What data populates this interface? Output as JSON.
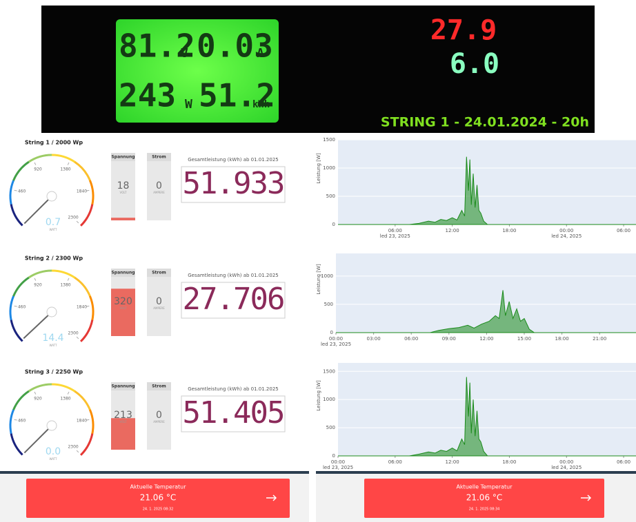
{
  "photo": {
    "lcd": {
      "voltage": "81.2",
      "voltage_unit": "V",
      "current": "0.03",
      "current_unit": "A",
      "power": "243",
      "power_unit": "W",
      "energy": "51.2",
      "energy_unit": "kWh"
    },
    "red_display": "27.9",
    "green_display": "6.0",
    "caption": "STRING 1 - 24.01.2024 - 20h"
  },
  "strings": [
    {
      "title": "String 1 / 2000 Wp",
      "gauge": {
        "value": 0.7,
        "value_label": "0.7",
        "unit": "WATT",
        "range": [
          0,
          2300
        ],
        "ticks": [
          460,
          920,
          1380,
          1840,
          2300
        ]
      },
      "voltage": {
        "label": "Spannung",
        "value": 18,
        "unit": "VOLT",
        "range": [
          0,
          400
        ]
      },
      "current": {
        "label": "Strom",
        "value": 0,
        "unit": "AMPERE",
        "range": [
          0,
          10
        ]
      },
      "total": {
        "label": "Gesamtleistung (kWh) ab 01.01.2025",
        "value": "51.933"
      }
    },
    {
      "title": "String 2 / 2300 Wp",
      "gauge": {
        "value": 14.4,
        "value_label": "14.4",
        "unit": "WATT",
        "range": [
          0,
          2300
        ],
        "ticks": [
          460,
          920,
          1380,
          1840,
          2300
        ]
      },
      "voltage": {
        "label": "Spannung",
        "value": 320,
        "unit": "VOLT",
        "range": [
          0,
          400
        ]
      },
      "current": {
        "label": "Strom",
        "value": 0,
        "unit": "AMPERE",
        "range": [
          0,
          10
        ]
      },
      "total": {
        "label": "Gesamtleistung (kWh) ab 01.01.2025",
        "value": "27.706"
      }
    },
    {
      "title": "String 3 / 2250 Wp",
      "gauge": {
        "value": 0,
        "value_label": "0.0",
        "unit": "WATT",
        "range": [
          0,
          2300
        ],
        "ticks": [
          460,
          920,
          1380,
          1840,
          2300
        ]
      },
      "voltage": {
        "label": "Spannung",
        "value": 213,
        "unit": "VOLT",
        "range": [
          0,
          400
        ]
      },
      "current": {
        "label": "Strom",
        "value": 0,
        "unit": "AMPERE",
        "range": [
          0,
          10
        ]
      },
      "total": {
        "label": "Gesamtleistung (kWh) ab 01.01.2025",
        "value": "51.405"
      }
    }
  ],
  "charts": [
    {
      "type": "area",
      "ylabel": "Leistung [W]",
      "color": "#1a8a1a",
      "x": [
        0.3,
        7.5,
        8.5,
        9.5,
        10.2,
        10.8,
        11.4,
        12.0,
        12.5,
        13.0,
        13.3,
        13.5,
        13.7,
        13.85,
        14.0,
        14.2,
        14.4,
        14.6,
        14.8,
        15.0,
        15.3,
        15.7,
        31.3
      ],
      "values": [
        0,
        0,
        20,
        60,
        40,
        90,
        70,
        120,
        80,
        250,
        150,
        1200,
        600,
        1150,
        350,
        900,
        300,
        700,
        250,
        200,
        60,
        0,
        0
      ],
      "xlim": [
        0,
        31.3
      ],
      "ylim": [
        0,
        1500
      ],
      "yticks": [
        0,
        500,
        1000,
        1500
      ],
      "xticks": [
        {
          "value": 6,
          "label": "06:00"
        },
        {
          "value": 12,
          "label": "12:00"
        },
        {
          "value": 18,
          "label": "18:00"
        },
        {
          "value": 24,
          "label": "00:00"
        },
        {
          "value": 30,
          "label": "06:00"
        }
      ],
      "date_labels": [
        {
          "value": 6,
          "label": "led 23, 2025"
        },
        {
          "value": 24,
          "label": "led 24, 2025"
        }
      ]
    },
    {
      "type": "area",
      "ylabel": "Leistung [W]",
      "color": "#1a8a1a",
      "x": [
        0,
        7.5,
        8.2,
        9.0,
        9.8,
        10.5,
        11.0,
        11.6,
        12.2,
        12.7,
        13.0,
        13.3,
        13.5,
        13.8,
        14.1,
        14.4,
        14.7,
        15.0,
        15.4,
        15.8,
        23.9
      ],
      "values": [
        0,
        0,
        40,
        70,
        90,
        130,
        80,
        150,
        200,
        300,
        250,
        750,
        300,
        550,
        250,
        420,
        200,
        250,
        60,
        0,
        0
      ],
      "xlim": [
        0,
        23.9
      ],
      "ylim": [
        0,
        1400
      ],
      "yticks": [
        0,
        500,
        1000
      ],
      "xticks": [
        {
          "value": 0,
          "label": "00:00"
        },
        {
          "value": 3,
          "label": "03:00"
        },
        {
          "value": 6,
          "label": "06:00"
        },
        {
          "value": 9,
          "label": "09:00"
        },
        {
          "value": 12,
          "label": "12:00"
        },
        {
          "value": 15,
          "label": "15:00"
        },
        {
          "value": 18,
          "label": "18:00"
        },
        {
          "value": 21,
          "label": "21:00"
        }
      ],
      "date_labels": [
        {
          "value": 0,
          "label": "led 23, 2025"
        }
      ]
    },
    {
      "type": "area",
      "ylabel": "Leistung [W]",
      "color": "#1a8a1a",
      "x": [
        0,
        7.5,
        8.5,
        9.5,
        10.2,
        10.8,
        11.4,
        12.0,
        12.5,
        13.0,
        13.3,
        13.5,
        13.7,
        13.85,
        14.0,
        14.2,
        14.4,
        14.6,
        14.8,
        15.0,
        15.3,
        15.7,
        31.3
      ],
      "values": [
        0,
        0,
        30,
        70,
        50,
        100,
        80,
        140,
        90,
        300,
        200,
        1400,
        700,
        1300,
        400,
        1000,
        350,
        800,
        300,
        250,
        80,
        0,
        0
      ],
      "xlim": [
        0,
        31.3
      ],
      "ylim": [
        0,
        1650
      ],
      "yticks": [
        0,
        500,
        1000,
        1500
      ],
      "xticks": [
        {
          "value": 0,
          "label": "00:00"
        },
        {
          "value": 6,
          "label": "06:00"
        },
        {
          "value": 12,
          "label": "12:00"
        },
        {
          "value": 18,
          "label": "18:00"
        },
        {
          "value": 24,
          "label": "00:00"
        },
        {
          "value": 30,
          "label": "06:00"
        }
      ],
      "date_labels": [
        {
          "value": 0,
          "label": "led 23, 2025"
        },
        {
          "value": 24,
          "label": "led 24, 2025"
        }
      ]
    }
  ],
  "temperature": [
    {
      "title": "Aktuelle Temperatur",
      "value": "21.06 °C",
      "timestamp": "24. 1. 2025 08:32"
    },
    {
      "title": "Aktuelle Temperatur",
      "value": "21.06 °C",
      "timestamp": "24. 1. 2025 08:34"
    }
  ]
}
